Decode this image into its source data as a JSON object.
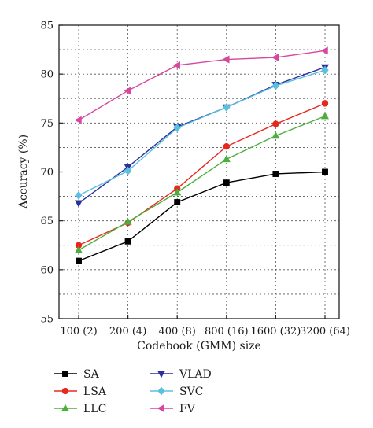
{
  "chart_data": {
    "type": "line",
    "title": "",
    "xlabel": "Codebook (GMM) size",
    "ylabel": "Accuracy (%)",
    "categories": [
      "100 (2)",
      "200 (4)",
      "400 (8)",
      "800 (16)",
      "1600 (32)",
      "3200 (64)"
    ],
    "ylim": [
      55,
      85
    ],
    "yticks": [
      55,
      60,
      65,
      70,
      75,
      80,
      85
    ],
    "grid": true,
    "legend_position": "bottom",
    "series": [
      {
        "name": "SA",
        "color": "#000000",
        "marker": "square",
        "values": [
          60.9,
          62.9,
          66.9,
          68.9,
          69.8,
          70.0
        ]
      },
      {
        "name": "LSA",
        "color": "#e8281e",
        "marker": "circle",
        "values": [
          62.5,
          64.8,
          68.3,
          72.6,
          74.9,
          77.0
        ]
      },
      {
        "name": "LLC",
        "color": "#4caf3c",
        "marker": "triangle-up",
        "values": [
          62.0,
          64.9,
          67.9,
          71.3,
          73.7,
          75.7
        ]
      },
      {
        "name": "VLAD",
        "color": "#2b2f9e",
        "marker": "triangle-down",
        "values": [
          66.8,
          70.5,
          74.6,
          76.6,
          78.9,
          80.7
        ]
      },
      {
        "name": "SVC",
        "color": "#5bc0de",
        "marker": "diamond",
        "values": [
          67.6,
          70.1,
          74.5,
          76.6,
          78.8,
          80.4
        ]
      },
      {
        "name": "FV",
        "color": "#d6479e",
        "marker": "triangle-left",
        "values": [
          75.3,
          78.3,
          80.9,
          81.5,
          81.7,
          82.4
        ]
      }
    ]
  }
}
